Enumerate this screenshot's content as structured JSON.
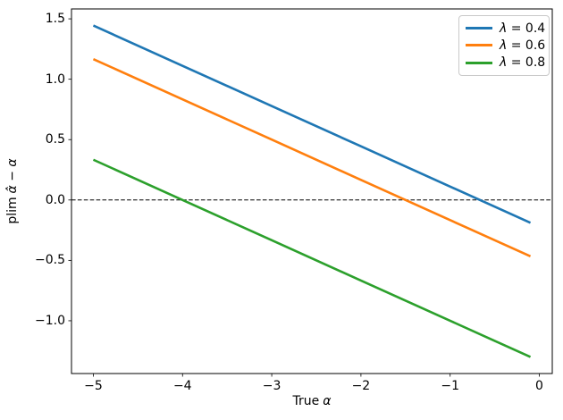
{
  "figure": {
    "background": "#ffffff"
  },
  "axis_labels": {
    "x": {
      "prefix": "True",
      "symbol": "α"
    },
    "y": {
      "prefix": "plim",
      "symbol": "α̂ − α"
    }
  },
  "chart_data": {
    "type": "line",
    "title": "",
    "xlabel": "True α",
    "ylabel": "plim α̂ − α",
    "grid": false,
    "legend_position": "upper right",
    "xlim": [
      -5.245,
      0.145
    ],
    "ylim": [
      -1.437,
      1.582
    ],
    "x": [
      -5,
      -4,
      -3,
      -2,
      -1,
      -0.1
    ],
    "series": [
      {
        "name": "λ = 0.4",
        "color": "#1f77b4",
        "values": [
          1.4444,
          1.1111,
          0.7778,
          0.4444,
          0.1111,
          -0.1889
        ]
      },
      {
        "name": "λ = 0.6",
        "color": "#ff7f0e",
        "values": [
          1.1667,
          0.8333,
          0.5,
          0.1667,
          -0.1667,
          -0.4667
        ]
      },
      {
        "name": "λ = 0.8",
        "color": "#2ca02c",
        "values": [
          0.3333,
          0.0,
          -0.3333,
          -0.6667,
          -1.0,
          -1.3
        ]
      }
    ],
    "reference_line": {
      "y": 0,
      "style": "dashed",
      "color": "#000000"
    },
    "xticks": {
      "values": [
        -5,
        -4,
        -3,
        -2,
        -1,
        0
      ],
      "labels": [
        "−5",
        "−4",
        "−3",
        "−2",
        "−1",
        "0"
      ]
    },
    "yticks": {
      "values": [
        1.5,
        1.0,
        0.5,
        0.0,
        -0.5,
        -1.0
      ],
      "labels": [
        "1.5",
        "1.0",
        "0.5",
        "0.0",
        "−0.5",
        "−1.0"
      ]
    }
  }
}
